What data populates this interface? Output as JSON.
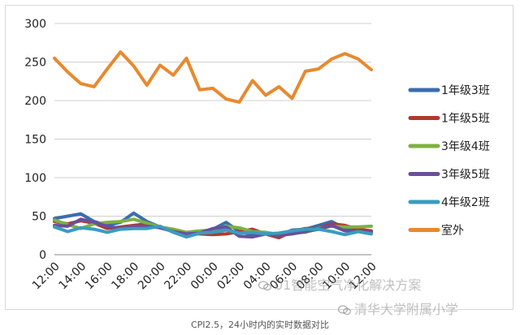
{
  "chart_data": {
    "type": "line",
    "title": "",
    "xlabel": "",
    "ylabel": "",
    "ylim": [
      0,
      300
    ],
    "yticks": [
      0,
      50,
      100,
      150,
      200,
      250,
      300
    ],
    "grid": true,
    "legend_position": "right",
    "x": [
      "12:00",
      "13:00",
      "14:00",
      "15:00",
      "16:00",
      "17:00",
      "18:00",
      "19:00",
      "20:00",
      "21:00",
      "22:00",
      "23:00",
      "00:00",
      "01:00",
      "02:00",
      "03:00",
      "04:00",
      "05:00",
      "06:00",
      "07:00",
      "08:00",
      "09:00",
      "10:00",
      "11:00",
      "12:00"
    ],
    "xtick_labels": [
      "12:00",
      "14:00",
      "16:00",
      "18:00",
      "20:00",
      "22:00",
      "00:00",
      "02:00",
      "04:00",
      "06:00",
      "08:00",
      "10:00",
      "12:00"
    ],
    "series": [
      {
        "name": "1年级3班",
        "color": "#3a6db0",
        "values": [
          47,
          50,
          53,
          43,
          38,
          42,
          54,
          43,
          36,
          30,
          26,
          29,
          33,
          42,
          30,
          26,
          27,
          25,
          32,
          33,
          38,
          43,
          34,
          31,
          30
        ]
      },
      {
        "name": "1年级5班",
        "color": "#b03a2e",
        "values": [
          43,
          40,
          44,
          41,
          34,
          36,
          38,
          40,
          35,
          32,
          28,
          27,
          26,
          27,
          30,
          33,
          27,
          22,
          30,
          34,
          34,
          40,
          38,
          33,
          31
        ]
      },
      {
        "name": "3年级4班",
        "color": "#7fb043",
        "values": [
          45,
          39,
          34,
          40,
          42,
          43,
          46,
          41,
          36,
          33,
          29,
          31,
          32,
          37,
          35,
          30,
          29,
          26,
          28,
          29,
          34,
          37,
          36,
          36,
          37
        ]
      },
      {
        "name": "3年级5班",
        "color": "#6a4f9a",
        "values": [
          38,
          37,
          46,
          42,
          37,
          34,
          37,
          37,
          35,
          30,
          27,
          28,
          34,
          36,
          24,
          23,
          27,
          25,
          27,
          30,
          33,
          38,
          31,
          30,
          29
        ]
      },
      {
        "name": "4年级2班",
        "color": "#3a9cbf",
        "values": [
          36,
          30,
          35,
          33,
          29,
          33,
          34,
          34,
          37,
          29,
          23,
          28,
          29,
          32,
          28,
          29,
          27,
          28,
          31,
          33,
          33,
          30,
          26,
          30,
          27
        ]
      },
      {
        "name": "室外",
        "color": "#e8892e",
        "values": [
          255,
          237,
          222,
          218,
          241,
          263,
          245,
          220,
          246,
          233,
          255,
          214,
          216,
          202,
          198,
          226,
          207,
          218,
          203,
          238,
          241,
          254,
          261,
          254,
          240
        ]
      }
    ]
  },
  "caption": "CPI2.5，24小时内的实时数据对比",
  "watermark": {
    "line1": "01智能空气净化解决方案",
    "line2": "清华大学附属小学"
  }
}
